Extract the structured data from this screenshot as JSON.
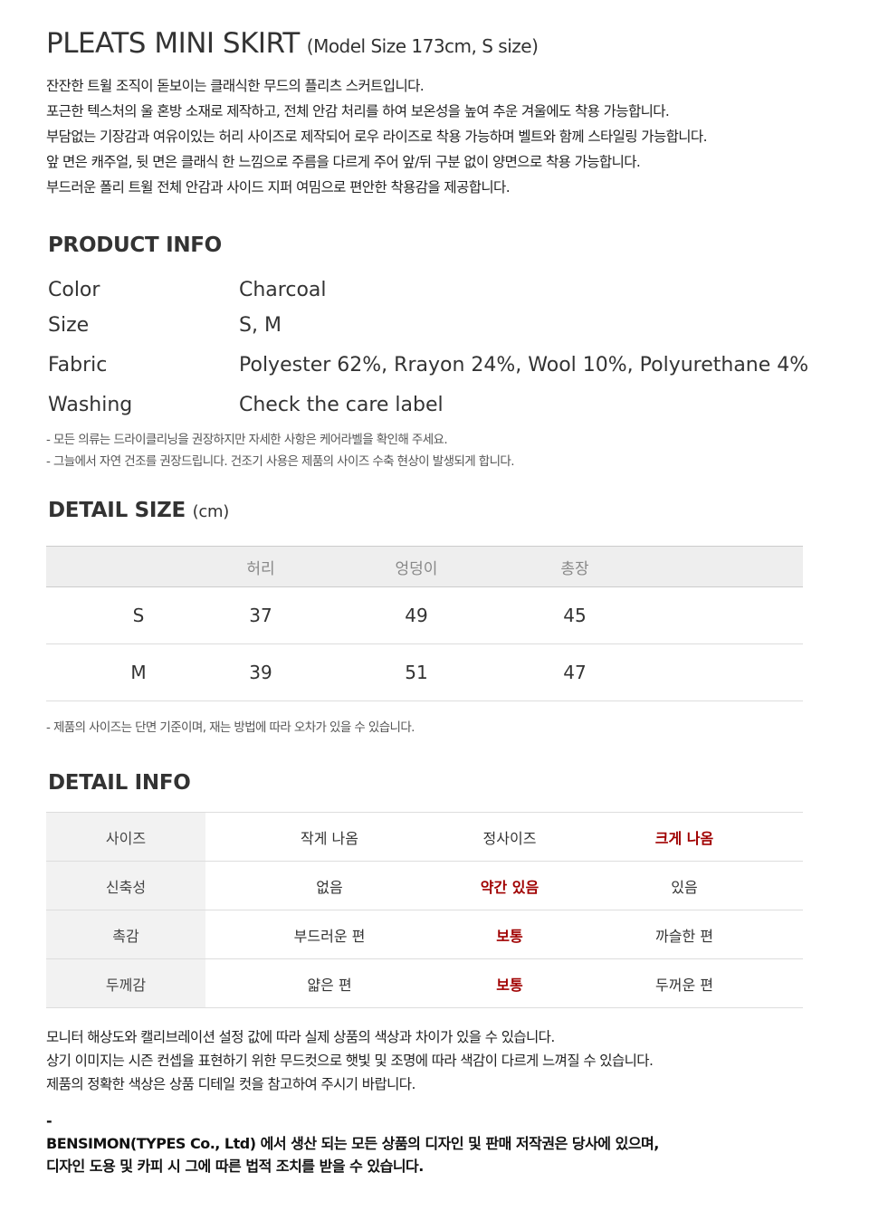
{
  "title": "PLEATS MINI SKIRT",
  "model_size": "(Model Size 173cm, S size)",
  "description": [
    "잔잔한 트윌 조직이 돋보이는 클래식한 무드의 플리츠 스커트입니다.",
    "포근한 텍스처의 울 혼방 소재로 제작하고, 전체 안감 처리를 하여 보온성을 높여 추운 겨울에도 착용 가능합니다.",
    "부담없는 기장감과 여유이있는 허리 사이즈로 제작되어 로우 라이즈로 착용 가능하며 벨트와 함께 스타일링 가능합니다.",
    "앞 면은 캐주얼, 뒷 면은 클래식 한 느낌으로 주름을 다르게 주어 앞/뒤 구분 없이 양면으로 착용 가능합니다.",
    "부드러운 폴리 트윌 전체 안감과 사이드 지퍼 여밈으로 편안한 착용감을 제공합니다."
  ],
  "product_info": {
    "heading": "PRODUCT INFO",
    "rows": [
      {
        "label": "Color",
        "value": "Charcoal"
      },
      {
        "label": "Size",
        "value": "S, M"
      },
      {
        "label": "Fabric",
        "value": "Polyester 62%, Rrayon 24%, Wool 10%, Polyurethane 4%"
      },
      {
        "label": "Washing",
        "value": "Check the care label"
      }
    ],
    "notes": [
      "- 모든 의류는 드라이클리닝을 권장하지만 자세한 사항은 케어라벨을 확인해 주세요.",
      "- 그늘에서 자연 건조를 권장드립니다. 건조기 사용은 제품의 사이즈 수축 현상이 발생되게 합니다."
    ]
  },
  "detail_size": {
    "heading": "DETAIL SIZE",
    "unit": "(cm)",
    "columns": [
      "",
      "허리",
      "엉덩이",
      "총장",
      ""
    ],
    "rows": [
      [
        "S",
        "37",
        "49",
        "45"
      ],
      [
        "M",
        "39",
        "51",
        "47"
      ]
    ],
    "note": "- 제품의 사이즈는 단면 기준이며, 재는 방법에 따라 오차가 있을 수 있습니다."
  },
  "detail_info": {
    "heading": "DETAIL INFO",
    "highlight_color": "#a00000",
    "rows": [
      {
        "label": "사이즈",
        "options": [
          "작게 나옴",
          "정사이즈",
          "크게 나옴"
        ],
        "selected": 2
      },
      {
        "label": "신축성",
        "options": [
          "없음",
          "약간 있음",
          "있음"
        ],
        "selected": 1
      },
      {
        "label": "촉감",
        "options": [
          "부드러운 편",
          "보통",
          "까슬한 편"
        ],
        "selected": 1
      },
      {
        "label": "두께감",
        "options": [
          "얇은 편",
          "보통",
          "두꺼운 편"
        ],
        "selected": 1
      }
    ]
  },
  "footer": [
    "모니터 해상도와 캘리브레이션 설정 값에 따라 실제 상품의 색상과 차이가 있을 수 있습니다.",
    "상기 이미지는 시즌 컨셉을 표현하기 위한 무드컷으로 햇빛 및 조명에 따라 색감이 다르게 느껴질 수 있습니다.",
    "제품의 정확한 색상은 상품 디테일 컷을 참고하여 주시기 바랍니다."
  ],
  "legal": {
    "dash": "-",
    "lines": [
      "BENSIMON(TYPES Co., Ltd) 에서 생산 되는 모든 상품의 디자인 및 판매 저작권은 당사에 있으며,",
      "디자인 도용 및 카피 시 그에 따른 법적 조치를 받을 수 있습니다."
    ]
  }
}
